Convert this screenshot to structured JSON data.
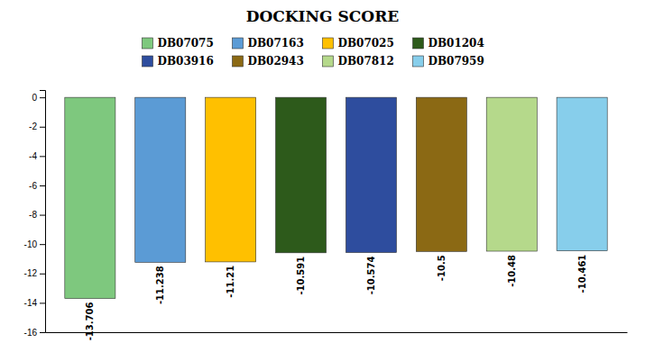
{
  "chart_data": {
    "type": "bar",
    "title": "DOCKING SCORE",
    "categories": [
      "DB07075",
      "DB07163",
      "DB07025",
      "DB01204",
      "DB03916",
      "DB02943",
      "DB07812",
      "DB07959"
    ],
    "values": [
      -13.706,
      -11.238,
      -11.21,
      -10.591,
      -10.574,
      -10.5,
      -10.48,
      -10.461
    ],
    "colors": [
      "#7ec87e",
      "#5b9bd5",
      "#ffc000",
      "#2d5a1b",
      "#2e4d9e",
      "#8b6914",
      "#b5d98b",
      "#87ceeb"
    ],
    "ylim": [
      -16,
      0.5
    ],
    "yticks": [
      0,
      -2,
      -4,
      -6,
      -8,
      -10,
      -12,
      -14,
      -16
    ],
    "grid": false,
    "data_labels": true,
    "legend": "top",
    "tick_labels": "y"
  }
}
